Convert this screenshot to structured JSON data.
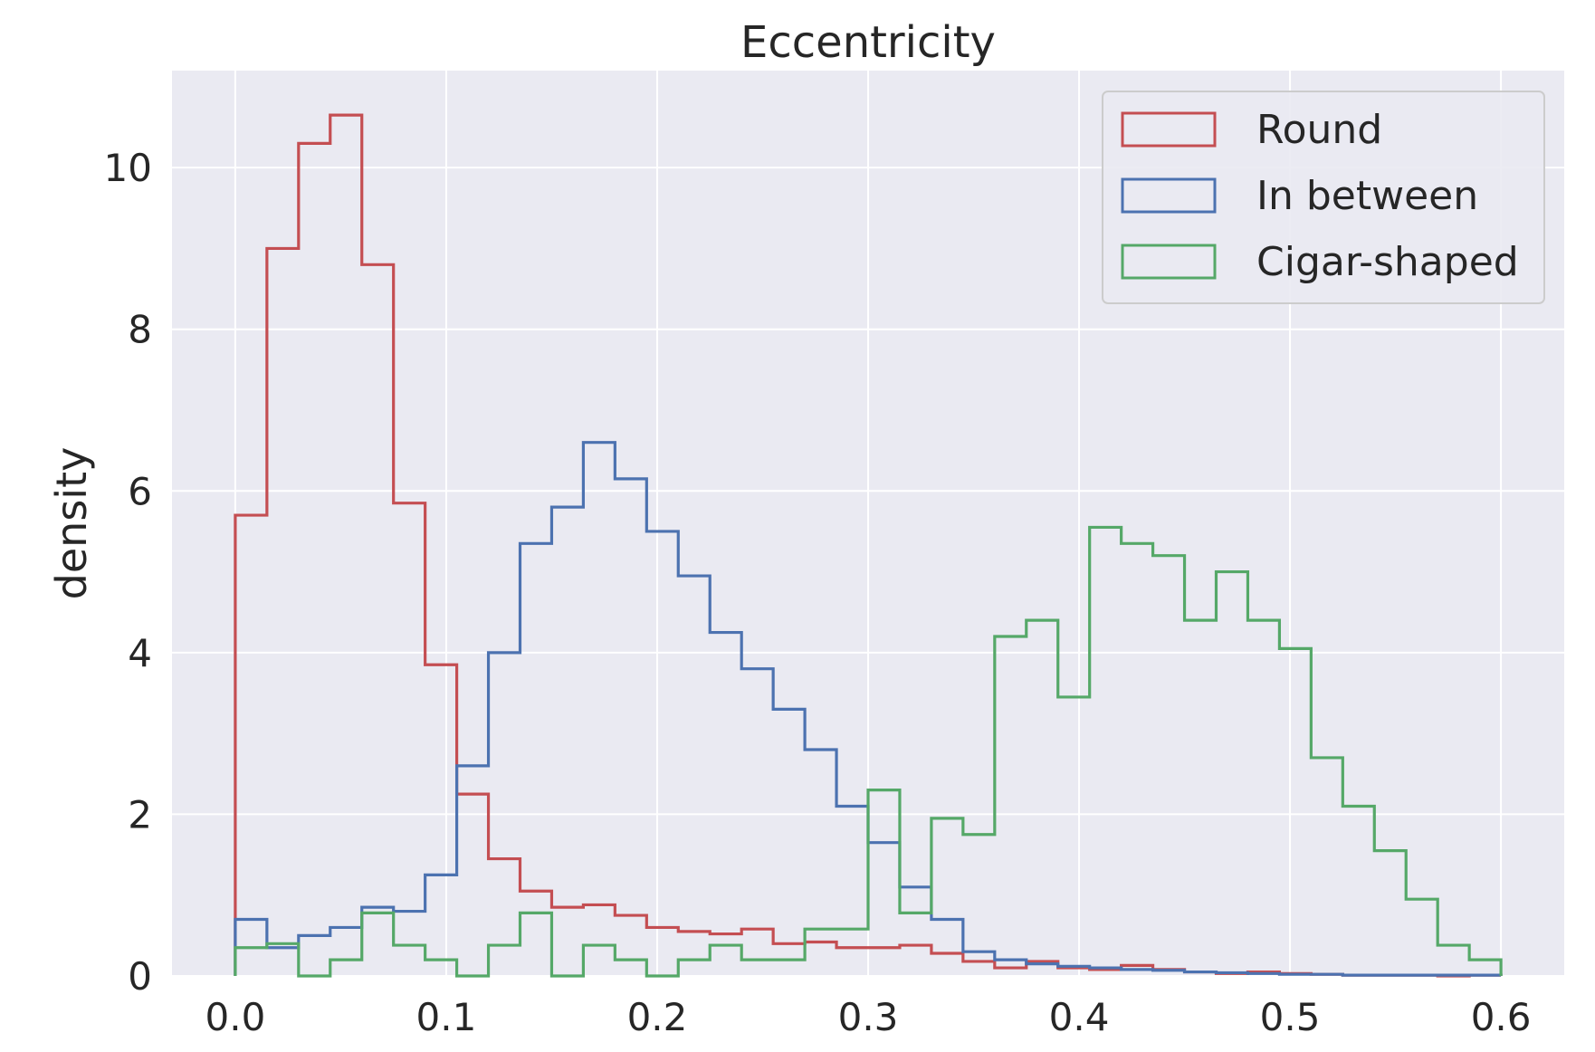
{
  "chart_data": {
    "type": "histogram",
    "title": "Eccentricity",
    "xlabel": "",
    "ylabel": "density",
    "xlim": [
      -0.03,
      0.63
    ],
    "ylim": [
      0,
      11.2
    ],
    "xticks": [
      0.0,
      0.1,
      0.2,
      0.3,
      0.4,
      0.5,
      0.6
    ],
    "xtick_labels": [
      "0.0",
      "0.1",
      "0.2",
      "0.3",
      "0.4",
      "0.5",
      "0.6"
    ],
    "yticks": [
      0,
      2,
      4,
      6,
      8,
      10
    ],
    "ytick_labels": [
      "0",
      "2",
      "4",
      "6",
      "8",
      "10"
    ],
    "grid": true,
    "legend_position": "top-right",
    "bin_width": 0.015,
    "bin_start": 0.0,
    "series": [
      {
        "name": "Round",
        "color": "#c44e52",
        "values": [
          5.7,
          9.0,
          10.3,
          10.65,
          8.8,
          5.85,
          3.85,
          2.25,
          1.45,
          1.05,
          0.85,
          0.88,
          0.75,
          0.6,
          0.55,
          0.52,
          0.58,
          0.4,
          0.42,
          0.35,
          0.35,
          0.38,
          0.28,
          0.18,
          0.1,
          0.18,
          0.1,
          0.08,
          0.13,
          0.08,
          0.05,
          0.03,
          0.05,
          0.03,
          0.02,
          0.01,
          0.01,
          0.01,
          0.0,
          0.01
        ]
      },
      {
        "name": "In between",
        "color": "#4c72b0",
        "values": [
          0.7,
          0.35,
          0.5,
          0.6,
          0.85,
          0.8,
          1.25,
          2.6,
          4.0,
          5.35,
          5.8,
          6.6,
          6.15,
          5.5,
          4.95,
          4.25,
          3.8,
          3.3,
          2.8,
          2.1,
          1.65,
          1.1,
          0.7,
          0.3,
          0.2,
          0.15,
          0.12,
          0.1,
          0.08,
          0.07,
          0.05,
          0.04,
          0.03,
          0.02,
          0.02,
          0.01,
          0.01,
          0.01,
          0.01,
          0.01
        ]
      },
      {
        "name": "Cigar-shaped",
        "color": "#55a868",
        "values": [
          0.35,
          0.4,
          0.0,
          0.2,
          0.78,
          0.38,
          0.2,
          0.0,
          0.38,
          0.78,
          0.0,
          0.38,
          0.2,
          0.0,
          0.2,
          0.38,
          0.2,
          0.2,
          0.58,
          0.58,
          2.3,
          0.78,
          1.95,
          1.75,
          4.2,
          4.4,
          3.45,
          5.55,
          5.35,
          5.2,
          4.4,
          5.0,
          4.4,
          4.05,
          2.7,
          2.1,
          1.55,
          0.95,
          0.38,
          0.2
        ]
      }
    ]
  }
}
